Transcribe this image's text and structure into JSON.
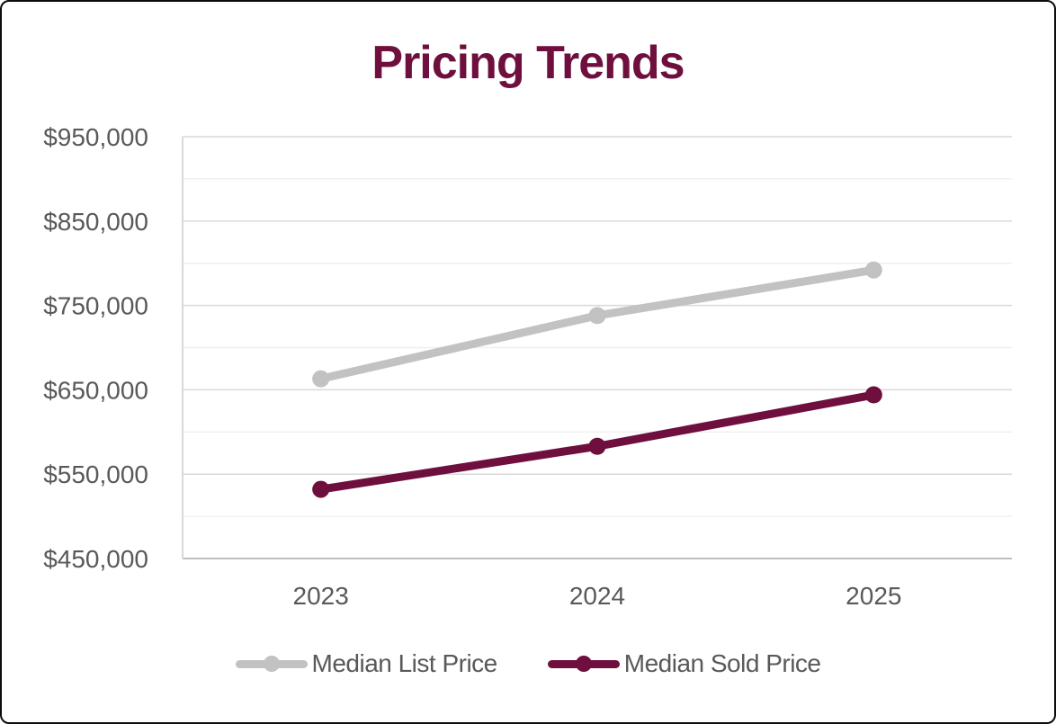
{
  "page": {
    "background": "#ffffff",
    "border_color": "#0c0c0c"
  },
  "chart_data": {
    "type": "line",
    "title": "Pricing Trends",
    "title_color": "#6e0f3d",
    "categories": [
      "2023",
      "2024",
      "2025"
    ],
    "series": [
      {
        "name": "Median List Price",
        "color": "#c2c2c2",
        "values": [
          663000,
          738000,
          792000
        ]
      },
      {
        "name": "Median Sold Price",
        "color": "#6e0f3d",
        "values": [
          532000,
          583000,
          644000
        ]
      }
    ],
    "ylim": [
      450000,
      950000
    ],
    "y_major_step": 100000,
    "y_minor_step": 50000,
    "y_tick_labels": [
      "$450,000",
      "$550,000",
      "$650,000",
      "$750,000",
      "$850,000",
      "$950,000"
    ],
    "y_tick_prefix": "$",
    "xlabel": "",
    "ylabel": "",
    "grid": "horizontal",
    "legend_position": "bottom",
    "axis_text_color": "#595959",
    "major_grid_color": "#d9d9d9",
    "minor_grid_color": "#f0f0f0",
    "axis_line_color": "#bfbfbf"
  }
}
